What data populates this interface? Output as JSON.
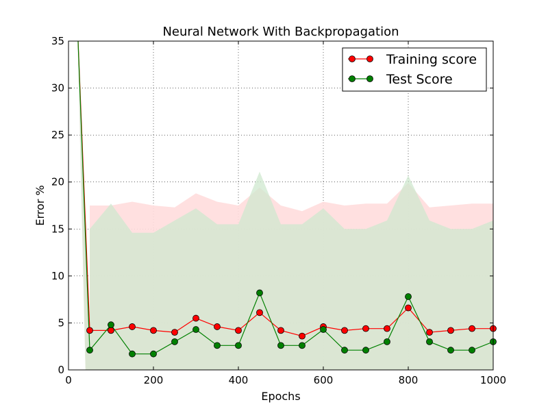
{
  "chart_data": {
    "type": "line",
    "title": "Neural Network With Backpropagation",
    "xlabel": "Epochs",
    "ylabel": "Error %",
    "xlim": [
      0,
      1000
    ],
    "ylim": [
      0,
      35
    ],
    "xticks": [
      0,
      200,
      400,
      600,
      800,
      1000
    ],
    "yticks": [
      0,
      5,
      10,
      15,
      20,
      25,
      30,
      35
    ],
    "grid": true,
    "legend_position": "top-right",
    "x": [
      50,
      100,
      150,
      200,
      250,
      300,
      350,
      400,
      450,
      500,
      550,
      600,
      650,
      700,
      750,
      800,
      850,
      900,
      950,
      1000
    ],
    "series": [
      {
        "name": "Training score",
        "color": "#ff0000",
        "line_color": "#ff0000",
        "band_color": "#ffdddd",
        "lead_in": [
          [
            20,
            38
          ],
          [
            50,
            4.2
          ]
        ],
        "values": [
          4.2,
          4.2,
          4.6,
          4.2,
          4.0,
          5.5,
          4.6,
          4.2,
          6.1,
          4.2,
          3.6,
          4.6,
          4.2,
          4.4,
          4.4,
          6.6,
          4.0,
          4.2,
          4.4,
          4.4
        ],
        "band_upper": [
          17.5,
          17.5,
          17.9,
          17.5,
          17.3,
          18.8,
          17.9,
          17.5,
          19.4,
          17.5,
          16.9,
          17.9,
          17.5,
          17.7,
          17.7,
          19.9,
          17.3,
          17.5,
          17.7,
          17.7
        ]
      },
      {
        "name": "Test Score",
        "color": "#008000",
        "line_color": "#008000",
        "band_color": "#cfe8cf",
        "lead_in": [
          [
            20,
            38
          ],
          [
            50,
            2.1
          ]
        ],
        "values": [
          2.1,
          4.8,
          1.7,
          1.7,
          3.0,
          4.3,
          2.6,
          2.6,
          8.2,
          2.6,
          2.6,
          4.3,
          2.1,
          2.1,
          3.0,
          7.8,
          3.0,
          2.1,
          2.1,
          3.0
        ],
        "band_upper": [
          15.0,
          17.7,
          14.6,
          14.6,
          15.9,
          17.2,
          15.5,
          15.5,
          21.1,
          15.5,
          15.5,
          17.2,
          15.0,
          15.0,
          15.9,
          20.7,
          15.9,
          15.0,
          15.0,
          15.9
        ]
      }
    ]
  }
}
